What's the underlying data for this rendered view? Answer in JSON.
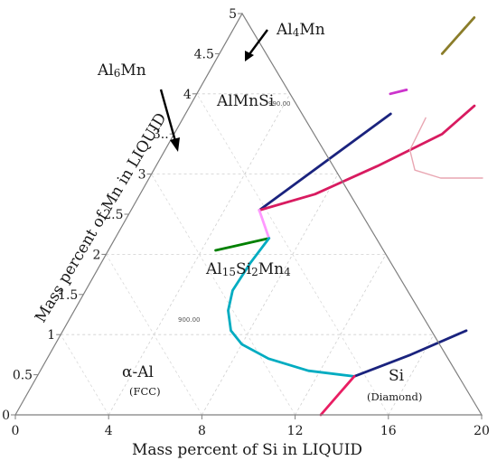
{
  "chart_data": {
    "type": "ternary-phase-diagram",
    "xlabel": "Mass percent of Si in LIQUID",
    "ylabel": "Mass percent of Mn in LIQUID",
    "xlim": [
      0,
      20
    ],
    "ylim": [
      0,
      5
    ],
    "x_ticks": [
      "0",
      "4",
      "8",
      "12",
      "16",
      "20"
    ],
    "y_ticks": [
      "0",
      "0.5",
      "1",
      "1.5",
      "2",
      "2.5",
      "3",
      "3.5",
      "4",
      "4.5",
      "5"
    ],
    "y_ticks_shown": [
      "0",
      "0.5",
      "1",
      "1.5",
      "2",
      "2.5",
      "3",
      "3..",
      "4",
      "4.5",
      "5"
    ],
    "grid": true,
    "isotherm_labels": [
      "990.00",
      "900.00"
    ],
    "phase_labels": [
      {
        "label": "Al4Mn",
        "main": "Al",
        "sub": "4",
        "rest": "Mn"
      },
      {
        "label": "Al6Mn",
        "main": "Al",
        "sub": "6",
        "rest": "Mn"
      },
      {
        "label": "AlMnSi"
      },
      {
        "label": "Al15Si2Mn4"
      },
      {
        "label": "α-Al",
        "note": "(FCC)"
      },
      {
        "label": "Si",
        "note": "(Diamond)"
      }
    ],
    "boundaries": [
      {
        "color": "#1a237e",
        "points": [
          [
            5.5,
            2.55
          ],
          [
            8.8,
            3.75
          ]
        ]
      },
      {
        "color": "#d81b60",
        "points": [
          [
            5.5,
            2.55
          ],
          [
            7.5,
            2.75
          ],
          [
            9.5,
            3.1
          ],
          [
            11.5,
            3.5
          ],
          [
            12.2,
            3.85
          ]
        ]
      },
      {
        "color": "#008000",
        "points": [
          [
            4.6,
            2.05
          ],
          [
            6.6,
            2.2
          ]
        ]
      },
      {
        "color": "#ff99ff",
        "points": [
          [
            6.6,
            2.2
          ],
          [
            5.5,
            2.55
          ]
        ]
      },
      {
        "color": "#00acc1",
        "points": [
          [
            6.6,
            2.2
          ],
          [
            6.4,
            1.9
          ],
          [
            6.3,
            1.55
          ],
          [
            6.6,
            1.3
          ],
          [
            7.2,
            1.05
          ],
          [
            8.0,
            0.88
          ],
          [
            9.5,
            0.7
          ],
          [
            11.5,
            0.55
          ],
          [
            13.6,
            0.48
          ]
        ]
      },
      {
        "color": "#1a237e",
        "points": [
          [
            13.6,
            0.48
          ],
          [
            15.5,
            0.75
          ],
          [
            17.3,
            1.05
          ]
        ]
      },
      {
        "color": "#e91e63",
        "points": [
          [
            13.6,
            0.48
          ],
          [
            13.1,
            0.0
          ]
        ]
      },
      {
        "color": "#8b7d2a",
        "points": [
          [
            9.55,
            4.5
          ],
          [
            10.05,
            4.95
          ]
        ]
      },
      {
        "color": "#cc33cc",
        "points": [
          [
            8.3,
            4.0
          ],
          [
            8.9,
            4.05
          ]
        ]
      },
      {
        "color": "#e9a6b2",
        "points": [
          [
            10.4,
            3.7
          ],
          [
            10.5,
            3.3
          ],
          [
            11.2,
            3.05
          ],
          [
            12.5,
            2.95
          ],
          [
            14.3,
            2.95
          ]
        ]
      }
    ]
  }
}
